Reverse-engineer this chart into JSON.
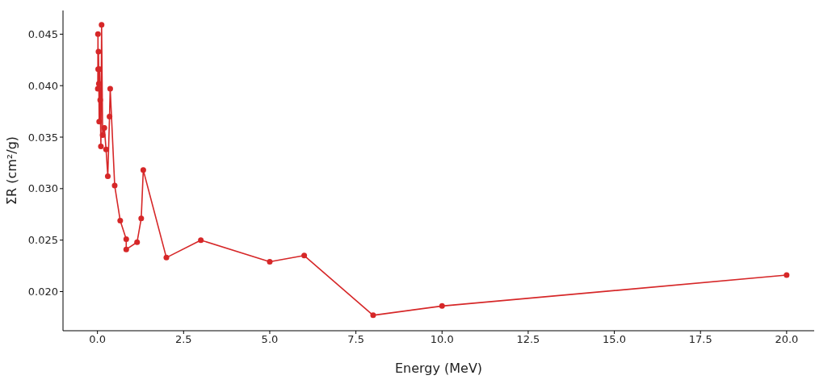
{
  "chart_data": {
    "type": "line",
    "xlabel": "Energy (MeV)",
    "ylabel": "ΣR (cm²/g)",
    "x": [
      0.01,
      0.015,
      0.02,
      0.03,
      0.04,
      0.05,
      0.06,
      0.08,
      0.1,
      0.12,
      0.15,
      0.2,
      0.25,
      0.3,
      0.35,
      0.37,
      0.5,
      0.66,
      0.835,
      0.835,
      1.15,
      1.27,
      1.33,
      2,
      3,
      5,
      6,
      8,
      10,
      20
    ],
    "series": [
      {
        "color": "#d62728",
        "values": [
          0.0397,
          0.045,
          0.0416,
          0.0433,
          0.0402,
          0.0365,
          0.0416,
          0.0386,
          0.0341,
          0.0459,
          0.0352,
          0.0359,
          0.0338,
          0.0312,
          0.037,
          0.0397,
          0.0303,
          0.0269,
          0.0251,
          0.0241,
          0.0248,
          0.0271,
          0.0318,
          0.0233,
          0.025,
          0.0229,
          0.0235,
          0.0177,
          0.0186,
          0.0216
        ]
      }
    ],
    "xlim": [
      -1,
      20.8
    ],
    "ylim": [
      0.0162,
      0.0473
    ],
    "xticks": [
      {
        "value": 0,
        "label": "0.0"
      },
      2.5,
      {
        "value": 5,
        "label": "5.0"
      },
      7.5,
      {
        "value": 10,
        "label": "10.0"
      },
      12.5,
      {
        "value": 15,
        "label": "15.0"
      },
      17.5,
      {
        "value": 20,
        "label": "20.0"
      }
    ],
    "yticks": [
      {
        "value": 0.02,
        "label": "0.020"
      },
      0.025,
      {
        "value": 0.03,
        "label": "0.030"
      },
      0.035,
      {
        "value": 0.04,
        "label": "0.040"
      },
      0.045
    ],
    "grid": false,
    "legend": false,
    "marker": "circle",
    "line_style": "solid"
  }
}
